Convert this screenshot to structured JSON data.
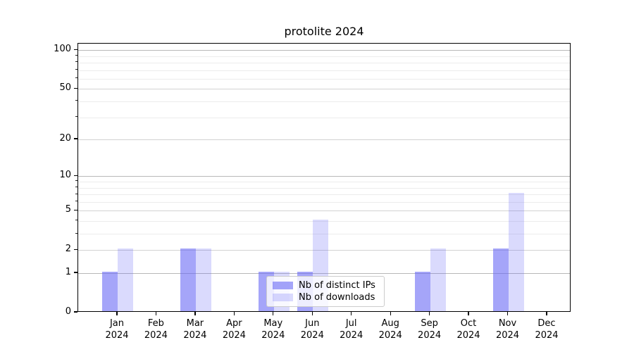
{
  "title": "protolite 2024",
  "chart_data": {
    "type": "bar",
    "title": "protolite 2024",
    "categories": [
      "Jan 2024",
      "Feb 2024",
      "Mar 2024",
      "Apr 2024",
      "May 2024",
      "Jun 2024",
      "Jul 2024",
      "Aug 2024",
      "Sep 2024",
      "Oct 2024",
      "Nov 2024",
      "Dec 2024"
    ],
    "series": [
      {
        "name": "Nb of distinct IPs",
        "color": "rgba(100,100,245,0.58)",
        "values": [
          1,
          0,
          2,
          0,
          1,
          1,
          0,
          0,
          1,
          0,
          2,
          0
        ]
      },
      {
        "name": "Nb of downloads",
        "color": "rgba(100,100,245,0.24)",
        "values": [
          2,
          0,
          2,
          0,
          1,
          4,
          0,
          0,
          2,
          0,
          7,
          0
        ]
      }
    ],
    "xlabel": "",
    "ylabel": "",
    "yscale": "log1p",
    "ylim": [
      0,
      112
    ],
    "yticks": [
      0,
      1,
      2,
      5,
      10,
      20,
      50,
      100
    ],
    "minor_gridline_values": [
      3,
      4,
      6,
      7,
      8,
      9,
      30,
      40,
      60,
      70,
      80,
      90
    ],
    "grid": true,
    "legend_position": "lower center",
    "colors": {
      "decade_grid": "#b8b8b8",
      "major_grid": "#d2d2d2",
      "minor_grid": "#ececec",
      "spine": "#000000",
      "background": "#ffffff"
    }
  }
}
